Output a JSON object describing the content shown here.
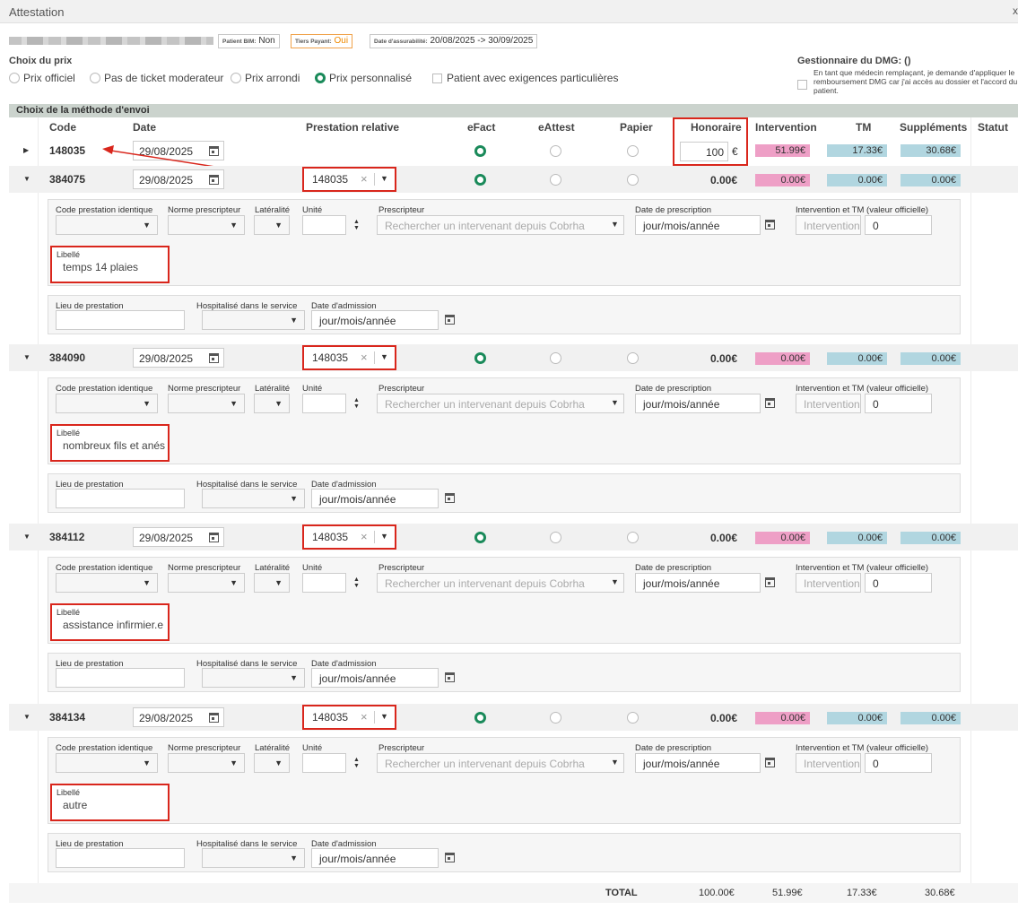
{
  "window": {
    "title": "Attestation",
    "close_label": "x"
  },
  "patient": {
    "name_hidden": "",
    "bim_label": "Patient BIM:",
    "bim_value": "Non",
    "tiers_label": "Tiers Payant:",
    "tiers_value": "Oui",
    "assur_label": "Date d'assurabilité:",
    "assur_value": "20/08/2025 -> 30/09/2025"
  },
  "choix_prix": {
    "title": "Choix du prix",
    "options": [
      "Prix officiel",
      "Pas de ticket moderateur",
      "Prix arrondi",
      "Prix personnalisé"
    ],
    "selected": "Prix personnalisé",
    "checkbox_label": "Patient avec exigences particulières"
  },
  "dmg": {
    "title": "Gestionnaire du DMG: ()",
    "text": "En tant que médecin remplaçant, je demande d'appliquer le remboursement DMG car j'ai accès au dossier et l'accord du patient."
  },
  "section_title": "Choix de la méthode d'envoi",
  "headers": {
    "code": "Code",
    "date": "Date",
    "prestation": "Prestation relative",
    "efact": "eFact",
    "eattest": "eAttest",
    "papier": "Papier",
    "honoraire": "Honoraire",
    "intervention": "Intervention",
    "tm": "TM",
    "supplements": "Suppléments",
    "statut": "Statut"
  },
  "main_row": {
    "code": "148035",
    "date": "29/08/2025",
    "honoraire": "100",
    "currency": "€",
    "intervention": "51.99€",
    "tm": "17.33€",
    "supplements": "30.68€"
  },
  "detail_labels": {
    "code_identique": "Code prestation identique",
    "norme": "Norme prescripteur",
    "lateralite": "Latéralité",
    "unite": "Unité",
    "prescripteur": "Prescripteur",
    "prescripteur_ph": "Rechercher un intervenant depuis Cobrha",
    "date_prescription": "Date de prescription",
    "date_ph": "jour/mois/année",
    "intervention_tm": "Intervention et TM (valeur officielle)",
    "intervention_ph": "Intervention",
    "tm_value": "0",
    "libelle": "Libellé",
    "lieu": "Lieu de prestation",
    "hospitalise": "Hospitalisé dans le service",
    "date_admission": "Date d'admission"
  },
  "sub_rows": [
    {
      "code": "384075",
      "date": "29/08/2025",
      "prestation": "148035",
      "honoraire": "0.00€",
      "intervention": "0.00€",
      "tm": "0.00€",
      "supplements": "0.00€",
      "libelle": "temps 14 plaies"
    },
    {
      "code": "384090",
      "date": "29/08/2025",
      "prestation": "148035",
      "honoraire": "0.00€",
      "intervention": "0.00€",
      "tm": "0.00€",
      "supplements": "0.00€",
      "libelle": "nombreux fils et anés"
    },
    {
      "code": "384112",
      "date": "29/08/2025",
      "prestation": "148035",
      "honoraire": "0.00€",
      "intervention": "0.00€",
      "tm": "0.00€",
      "supplements": "0.00€",
      "libelle": "assistance infirmier.e"
    },
    {
      "code": "384134",
      "date": "29/08/2025",
      "prestation": "148035",
      "honoraire": "0.00€",
      "intervention": "0.00€",
      "tm": "0.00€",
      "supplements": "0.00€",
      "libelle": "autre"
    }
  ],
  "totals": {
    "label": "TOTAL",
    "honoraire": "100.00€",
    "intervention": "51.99€",
    "tm": "17.33€",
    "supplements": "30.68€"
  },
  "colors": {
    "accent_green": "#1a8a5a",
    "highlight_red": "#d9261c",
    "pink": "#ee9fc6",
    "blue": "#b1d6e0"
  }
}
